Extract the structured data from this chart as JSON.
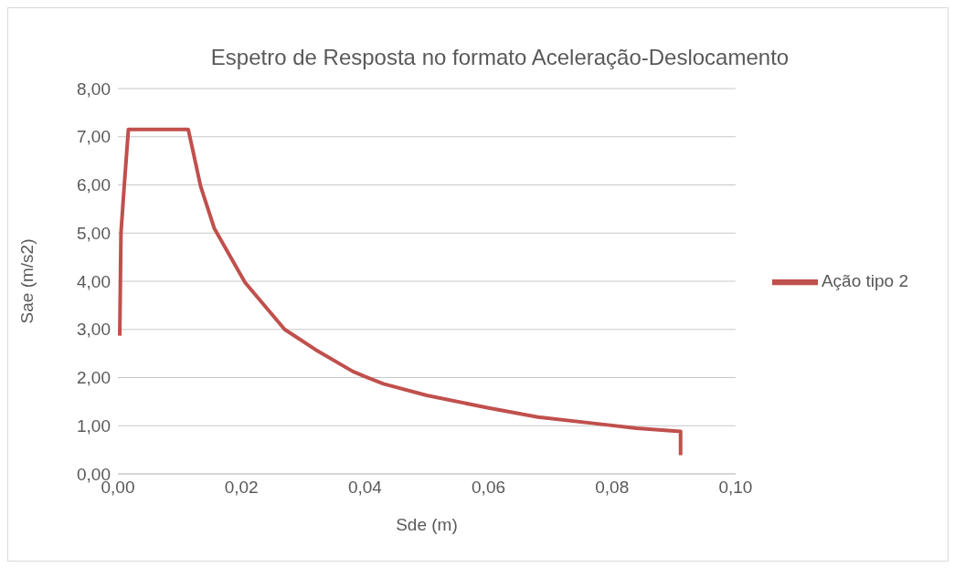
{
  "chart_data": {
    "type": "line",
    "title": "Espetro de Resposta no formato Aceleração-Deslocamento",
    "xlabel": "Sde (m)",
    "ylabel": "Sae (m/s2)",
    "x": [
      0.0003,
      0.0005,
      0.001,
      0.0017,
      0.0114,
      0.0134,
      0.0156,
      0.0206,
      0.027,
      0.032,
      0.038,
      0.04,
      0.043,
      0.05,
      0.06,
      0.068,
      0.077,
      0.084,
      0.0911,
      0.0911
    ],
    "series": [
      {
        "name": "Ação tipo 2",
        "color": "#c0504d",
        "values": [
          2.87,
          5.0,
          5.93,
          7.15,
          7.15,
          5.97,
          5.1,
          3.97,
          3.0,
          2.58,
          2.13,
          2.02,
          1.87,
          1.63,
          1.37,
          1.18,
          1.05,
          0.95,
          0.88,
          0.39
        ]
      }
    ],
    "xlim": [
      0,
      0.1
    ],
    "xticks": [
      {
        "value": 0,
        "label": "0,00"
      },
      {
        "value": 0.02,
        "label": "0,02"
      },
      {
        "value": 0.04,
        "label": "0,04"
      },
      {
        "value": 0.06,
        "label": "0,06"
      },
      {
        "value": 0.08,
        "label": "0,08"
      },
      {
        "value": 0.1,
        "label": "0,10"
      }
    ],
    "ylim": [
      0,
      8
    ],
    "yticks": [
      {
        "value": 0,
        "label": "0,00"
      },
      {
        "value": 1,
        "label": "1,00"
      },
      {
        "value": 2,
        "label": "2,00"
      },
      {
        "value": 3,
        "label": "3,00"
      },
      {
        "value": 4,
        "label": "4,00"
      },
      {
        "value": 5,
        "label": "5,00"
      },
      {
        "value": 6,
        "label": "6,00"
      },
      {
        "value": 7,
        "label": "7,00"
      },
      {
        "value": 8,
        "label": "8,00"
      }
    ],
    "grid": "y",
    "legend": "right",
    "marker": "none",
    "line_style": "solid"
  }
}
